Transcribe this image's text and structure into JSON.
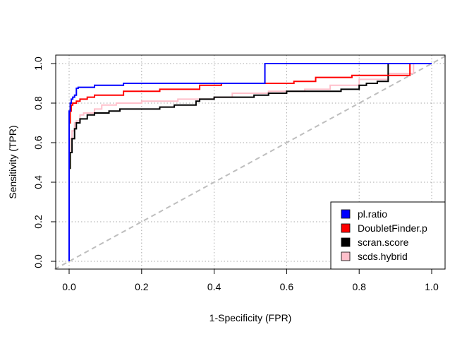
{
  "chart_data": {
    "type": "line",
    "xlabel": "1-Specificity (FPR)",
    "ylabel": "Sensitivity (TPR)",
    "xlim": [
      0,
      1
    ],
    "ylim": [
      0,
      1
    ],
    "x_ticks": [
      "0.0",
      "0.2",
      "0.4",
      "0.6",
      "0.8",
      "1.0"
    ],
    "y_ticks": [
      "0.0",
      "0.2",
      "0.4",
      "0.6",
      "0.8",
      "1.0"
    ],
    "grid": true,
    "legend_position": "bottom-right",
    "reference_line": {
      "from": [
        0,
        0
      ],
      "to": [
        1,
        1
      ],
      "style": "dashed",
      "color": "#bebebe"
    },
    "series": [
      {
        "name": "pl.ratio",
        "color": "#0000ff",
        "points": [
          [
            0,
            0
          ],
          [
            0.003,
            0.76
          ],
          [
            0.006,
            0.8
          ],
          [
            0.01,
            0.82
          ],
          [
            0.015,
            0.83
          ],
          [
            0.02,
            0.84
          ],
          [
            0.025,
            0.875
          ],
          [
            0.07,
            0.88
          ],
          [
            0.15,
            0.89
          ],
          [
            0.36,
            0.9
          ],
          [
            0.54,
            0.9
          ],
          [
            0.54,
            1.0
          ],
          [
            1.0,
            1.0
          ]
        ]
      },
      {
        "name": "DoubletFinder.p",
        "color": "#ff0000",
        "points": [
          [
            0,
            0
          ],
          [
            0.003,
            0.7
          ],
          [
            0.006,
            0.76
          ],
          [
            0.01,
            0.79
          ],
          [
            0.02,
            0.8
          ],
          [
            0.03,
            0.81
          ],
          [
            0.05,
            0.82
          ],
          [
            0.07,
            0.83
          ],
          [
            0.15,
            0.84
          ],
          [
            0.25,
            0.86
          ],
          [
            0.36,
            0.87
          ],
          [
            0.42,
            0.89
          ],
          [
            0.62,
            0.9
          ],
          [
            0.68,
            0.91
          ],
          [
            0.78,
            0.93
          ],
          [
            0.87,
            0.94
          ],
          [
            0.94,
            0.94
          ],
          [
            0.94,
            1.0
          ],
          [
            1.0,
            1.0
          ]
        ]
      },
      {
        "name": "scran.score",
        "color": "#000000",
        "points": [
          [
            0,
            0
          ],
          [
            0.003,
            0.47
          ],
          [
            0.008,
            0.55
          ],
          [
            0.015,
            0.62
          ],
          [
            0.02,
            0.67
          ],
          [
            0.03,
            0.7
          ],
          [
            0.05,
            0.72
          ],
          [
            0.07,
            0.74
          ],
          [
            0.11,
            0.75
          ],
          [
            0.14,
            0.76
          ],
          [
            0.25,
            0.77
          ],
          [
            0.29,
            0.78
          ],
          [
            0.35,
            0.79
          ],
          [
            0.36,
            0.81
          ],
          [
            0.4,
            0.82
          ],
          [
            0.51,
            0.83
          ],
          [
            0.55,
            0.84
          ],
          [
            0.6,
            0.85
          ],
          [
            0.75,
            0.86
          ],
          [
            0.8,
            0.87
          ],
          [
            0.82,
            0.89
          ],
          [
            0.85,
            0.9
          ],
          [
            0.88,
            0.91
          ],
          [
            0.88,
            1.0
          ],
          [
            1.0,
            1.0
          ]
        ]
      },
      {
        "name": "scds.hybrid",
        "color": "#ffc0cb",
        "points": [
          [
            0,
            0
          ],
          [
            0.003,
            0.55
          ],
          [
            0.008,
            0.62
          ],
          [
            0.015,
            0.66
          ],
          [
            0.02,
            0.7
          ],
          [
            0.03,
            0.71
          ],
          [
            0.04,
            0.74
          ],
          [
            0.07,
            0.75
          ],
          [
            0.09,
            0.77
          ],
          [
            0.13,
            0.79
          ],
          [
            0.2,
            0.8
          ],
          [
            0.3,
            0.81
          ],
          [
            0.4,
            0.82
          ],
          [
            0.45,
            0.83
          ],
          [
            0.55,
            0.85
          ],
          [
            0.65,
            0.86
          ],
          [
            0.72,
            0.87
          ],
          [
            0.8,
            0.89
          ],
          [
            0.88,
            0.92
          ],
          [
            0.95,
            0.95
          ],
          [
            1.0,
            1.0
          ]
        ]
      }
    ]
  }
}
